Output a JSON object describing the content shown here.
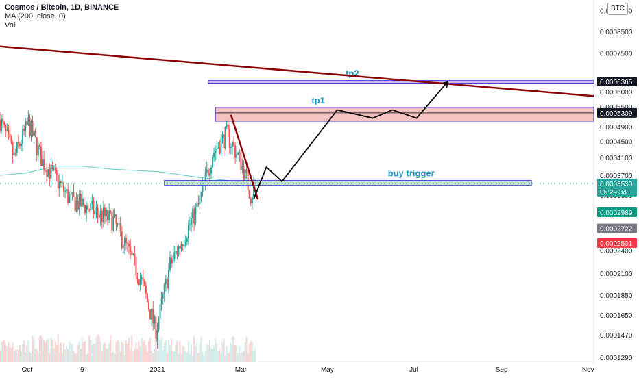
{
  "legend": {
    "title": "Cosmos / Bitcoin, 1D, BINANCE",
    "ma": "MA (200, close, 0)",
    "vol": "Vol"
  },
  "currency_button": "BTC",
  "colors": {
    "up": "#26a69a",
    "down": "#ef5350",
    "trendline": "#8b0000",
    "ma_line": "#5fc7c0",
    "tp_border": "#3333cc",
    "tp_fill": "#f4b8b8",
    "tp2_fill": "#c9a8e8",
    "buy_fill": "#b9d7c7",
    "path": "#000000",
    "label_text": "#1e9bc0"
  },
  "chart_data": {
    "type": "candlestick",
    "title": "Cosmos / Bitcoin, 1D, BINANCE",
    "y_scale": "log",
    "ylim": [
      0.000126,
      0.00102
    ],
    "y_ticks": [
      "0.0001290",
      "0.0001470",
      "0.0001650",
      "0.0001850",
      "0.0002100",
      "0.0002400",
      "0.0003300",
      "0.0003700",
      "0.0004100",
      "0.0004500",
      "0.0004900",
      "0.0005500",
      "0.0006000",
      "0.0007500",
      "0.0008500",
      "0.0009600"
    ],
    "y_tick_values": [
      0.000129,
      0.000147,
      0.000165,
      0.000185,
      0.00021,
      0.00024,
      0.00033,
      0.00037,
      0.00041,
      0.00045,
      0.00049,
      0.00055,
      0.0006,
      0.00075,
      0.00085,
      0.00096
    ],
    "x_ticks": [
      "Oct",
      "9",
      "2021",
      "Mar",
      "May",
      "Jul",
      "Sep",
      "Nov"
    ],
    "x_tick_dates": [
      "2020-10-01",
      "2020-11-09",
      "2021-01-01",
      "2021-03-01",
      "2021-05-01",
      "2021-07-01",
      "2021-09-01",
      "2021-11-01"
    ],
    "x_range": [
      "2020-09-12",
      "2021-11-05"
    ],
    "series": [
      {
        "name": "Cosmos / Bitcoin",
        "kind": "ohlc-approx",
        "dates": [
          "2020-09-12",
          "2020-09-22",
          "2020-10-02",
          "2020-10-12",
          "2020-10-22",
          "2020-11-01",
          "2020-11-11",
          "2020-11-21",
          "2020-12-01",
          "2020-12-11",
          "2020-12-21",
          "2020-12-31",
          "2021-01-10",
          "2021-01-20",
          "2021-01-30",
          "2021-02-09",
          "2021-02-19",
          "2021-03-01",
          "2021-03-08",
          "2021-03-11"
        ],
        "close": [
          0.00051,
          0.00041,
          0.0005,
          0.0004,
          0.00036,
          0.00032,
          0.00031,
          0.000295,
          0.000285,
          0.00024,
          0.0002,
          0.00015,
          0.00022,
          0.00026,
          0.00031,
          0.00042,
          0.00047,
          0.0004,
          0.00033,
          0.000353
        ]
      },
      {
        "name": "MA (200, close, 0)",
        "kind": "line",
        "dates": [
          "2020-09-12",
          "2020-10-01",
          "2020-10-20",
          "2020-11-09",
          "2020-12-01",
          "2021-01-01",
          "2021-02-01",
          "2021-03-01",
          "2021-03-11"
        ],
        "values": [
          0.00037,
          0.000375,
          0.00039,
          0.00039,
          0.000383,
          0.000378,
          0.000365,
          0.000356,
          0.000356
        ]
      }
    ],
    "price_labels": [
      {
        "text": "0.0006365",
        "value": 0.0006365,
        "style": "dark"
      },
      {
        "text": "0.0005309",
        "value": 0.0005309,
        "style": "dark"
      },
      {
        "text": "0.0003530",
        "value": 0.000353,
        "style": "teal"
      },
      {
        "text": "05:29:34",
        "value": 0.00033,
        "style": "teal"
      },
      {
        "text": "0.0002989",
        "value": 0.0002989,
        "style": "green"
      },
      {
        "text": "0.0002722",
        "value": 0.0002722,
        "style": "grey"
      },
      {
        "text": "0.0002501",
        "value": 0.0002501,
        "style": "red"
      }
    ],
    "annotations": [
      {
        "name": "tp2",
        "label": "tp2",
        "from": "2021-02-06",
        "to": "2021-11-05",
        "low": 0.00063,
        "high": 0.00064
      },
      {
        "name": "tp1",
        "label": "tp1",
        "from": "2021-02-11",
        "to": "2021-11-05",
        "low": 0.000506,
        "high": 0.000548
      },
      {
        "name": "buy-trigger",
        "label": "buy trigger",
        "from": "2021-01-06",
        "to": "2021-09-22",
        "low": 0.000349,
        "high": 0.000359
      }
    ],
    "trendlines": [
      {
        "name": "long-resistance",
        "from": {
          "date": "2020-09-12",
          "value": 0.00078
        },
        "to": {
          "date": "2021-11-05",
          "value": 0.000585
        }
      },
      {
        "name": "short-resistance",
        "from": {
          "date": "2021-02-22",
          "value": 0.000525
        },
        "to": {
          "date": "2021-03-13",
          "value": 0.000322
        }
      }
    ],
    "projection_path": [
      {
        "date": "2021-03-10",
        "value": 0.000322
      },
      {
        "date": "2021-03-19",
        "value": 0.000388
      },
      {
        "date": "2021-03-30",
        "value": 0.000357
      },
      {
        "date": "2021-05-08",
        "value": 0.00054
      },
      {
        "date": "2021-06-02",
        "value": 0.000515
      },
      {
        "date": "2021-06-16",
        "value": 0.00054
      },
      {
        "date": "2021-07-03",
        "value": 0.000515
      },
      {
        "date": "2021-07-25",
        "value": 0.000636
      }
    ]
  }
}
